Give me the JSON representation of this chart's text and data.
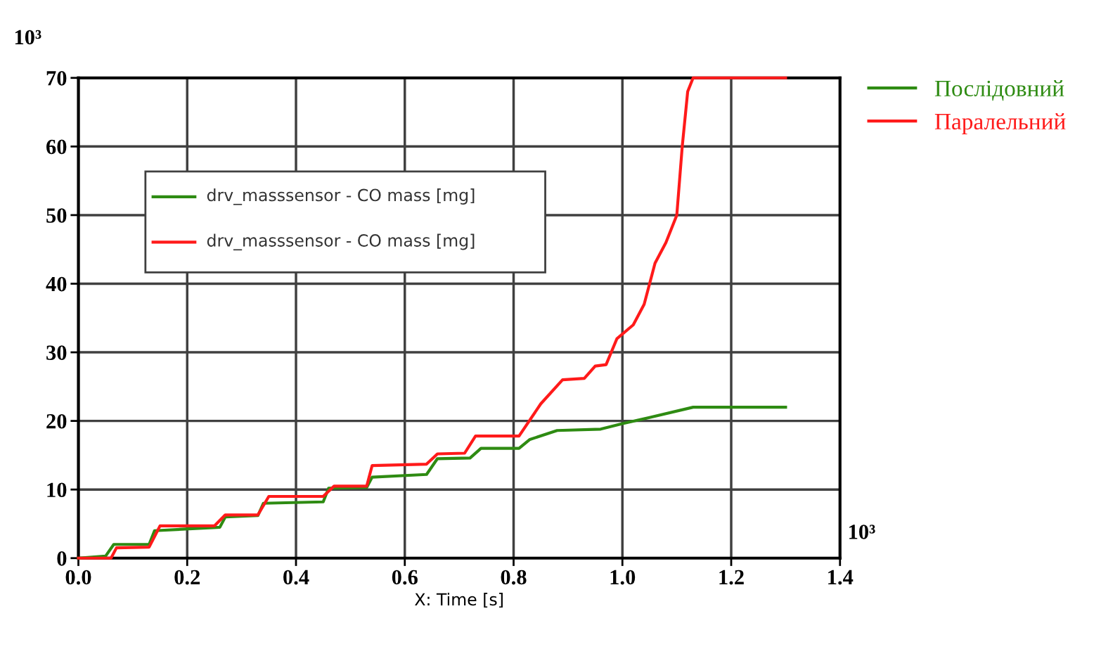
{
  "chart_data": {
    "type": "line",
    "xlabel": "X: Time [s]",
    "xlim": [
      0,
      1.4
    ],
    "xticks": [
      {
        "value": 0,
        "label": "0.0"
      },
      0.2,
      0.4,
      0.6,
      0.8,
      {
        "value": 1,
        "label": "1.0"
      },
      1.2,
      1.4
    ],
    "ylim": [
      0,
      70
    ],
    "yticks": [
      0,
      10,
      20,
      30,
      40,
      50,
      60,
      70
    ],
    "grid": true,
    "legend": "top right",
    "annotations": [
      "10³",
      "10³",
      "drv_masssensor - CO mass [mg]",
      "drv_masssensor - CO mass [mg]"
    ],
    "series": [
      {
        "name": "Послідовний",
        "color": "#2e8b12",
        "x": [
          0,
          0.05,
          0.065,
          0.13,
          0.14,
          0.26,
          0.27,
          0.33,
          0.34,
          0.45,
          0.46,
          0.53,
          0.54,
          0.64,
          0.66,
          0.72,
          0.74,
          0.81,
          0.83,
          0.88,
          0.96,
          1.0,
          1.05,
          1.13,
          1.3
        ],
        "values": [
          0,
          0.3,
          2,
          2,
          4,
          4.5,
          6,
          6.2,
          8,
          8.2,
          10.2,
          10.3,
          11.8,
          12.2,
          14.5,
          14.6,
          16,
          16,
          17.3,
          18.6,
          18.8,
          19.6,
          20.5,
          22,
          22
        ]
      },
      {
        "name": "Паралельний",
        "color": "#ff1a1a",
        "x": [
          0,
          0.06,
          0.07,
          0.13,
          0.15,
          0.25,
          0.27,
          0.33,
          0.35,
          0.45,
          0.47,
          0.53,
          0.54,
          0.64,
          0.66,
          0.71,
          0.73,
          0.81,
          0.85,
          0.89,
          0.93,
          0.95,
          0.97,
          0.99,
          1.02,
          1.04,
          1.06,
          1.08,
          1.1,
          1.11,
          1.12,
          1.13,
          1.3
        ],
        "values": [
          0,
          0,
          1.5,
          1.6,
          4.7,
          4.7,
          6.3,
          6.3,
          9,
          9,
          10.5,
          10.5,
          13.5,
          13.7,
          15.2,
          15.3,
          17.8,
          17.8,
          22.5,
          26,
          26.2,
          28,
          28.2,
          32,
          34,
          37,
          43,
          46,
          50,
          60,
          68,
          70,
          70
        ]
      }
    ]
  }
}
